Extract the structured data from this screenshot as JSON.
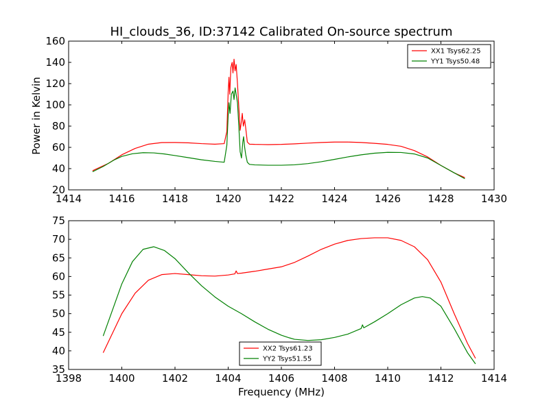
{
  "title": "HI_clouds_36, ID:37142 Calibrated On-source spectrum",
  "colors": {
    "red": "#ff0000",
    "green": "#008000",
    "axes": "#000000",
    "background": "#ffffff"
  },
  "chart_data": [
    {
      "type": "line",
      "panel": "top",
      "title": "HI_clouds_36, ID:37142 Calibrated On-source spectrum",
      "xlabel": "",
      "ylabel": "Power in Kelvin",
      "xlim": [
        1414,
        1430
      ],
      "ylim": [
        20,
        160
      ],
      "xticks": [
        "1414",
        "1416",
        "1418",
        "1420",
        "1422",
        "1424",
        "1426",
        "1428",
        "1430"
      ],
      "yticks": [
        "20",
        "40",
        "60",
        "80",
        "100",
        "120",
        "140",
        "160"
      ],
      "grid": false,
      "legend_position": "top-right",
      "series": [
        {
          "name": "XX1 Tsys62.25",
          "color": "#ff0000",
          "points": [
            [
              1414.9,
              38
            ],
            [
              1415.5,
              45
            ],
            [
              1416.0,
              53
            ],
            [
              1416.5,
              59
            ],
            [
              1417.0,
              63
            ],
            [
              1417.5,
              64.5
            ],
            [
              1418.0,
              64.6
            ],
            [
              1418.5,
              64.3
            ],
            [
              1419.0,
              63.5
            ],
            [
              1419.5,
              63
            ],
            [
              1419.85,
              63.5
            ],
            [
              1419.95,
              75
            ],
            [
              1420.0,
              112
            ],
            [
              1420.03,
              126
            ],
            [
              1420.06,
              110
            ],
            [
              1420.1,
              135
            ],
            [
              1420.15,
              140
            ],
            [
              1420.18,
              130
            ],
            [
              1420.22,
              143
            ],
            [
              1420.26,
              132
            ],
            [
              1420.3,
              138
            ],
            [
              1420.35,
              120
            ],
            [
              1420.4,
              98
            ],
            [
              1420.45,
              76
            ],
            [
              1420.5,
              85
            ],
            [
              1420.53,
              92
            ],
            [
              1420.57,
              80
            ],
            [
              1420.62,
              86
            ],
            [
              1420.66,
              78
            ],
            [
              1420.72,
              65
            ],
            [
              1420.8,
              63
            ],
            [
              1421.0,
              62.8
            ],
            [
              1421.5,
              62.6
            ],
            [
              1422.0,
              62.8
            ],
            [
              1422.5,
              63.3
            ],
            [
              1423.0,
              64
            ],
            [
              1423.5,
              64.6
            ],
            [
              1424.0,
              65
            ],
            [
              1424.5,
              65
            ],
            [
              1425.0,
              64.6
            ],
            [
              1425.5,
              63.8
            ],
            [
              1426.0,
              62.8
            ],
            [
              1426.5,
              61
            ],
            [
              1427.0,
              57
            ],
            [
              1427.5,
              51
            ],
            [
              1428.0,
              43
            ],
            [
              1428.5,
              36
            ],
            [
              1428.9,
              31.5
            ]
          ]
        },
        {
          "name": "YY1 Tsys50.48",
          "color": "#008000",
          "points": [
            [
              1414.9,
              37
            ],
            [
              1415.3,
              42
            ],
            [
              1415.7,
              48
            ],
            [
              1416.0,
              51.5
            ],
            [
              1416.4,
              54
            ],
            [
              1416.8,
              55
            ],
            [
              1417.2,
              54.8
            ],
            [
              1417.6,
              53.8
            ],
            [
              1418.0,
              52.3
            ],
            [
              1418.5,
              50.3
            ],
            [
              1419.0,
              48.3
            ],
            [
              1419.5,
              46.8
            ],
            [
              1419.85,
              46
            ],
            [
              1419.95,
              62
            ],
            [
              1420.0,
              90
            ],
            [
              1420.03,
              102
            ],
            [
              1420.07,
              92
            ],
            [
              1420.12,
              110
            ],
            [
              1420.18,
              113
            ],
            [
              1420.22,
              105
            ],
            [
              1420.26,
              116
            ],
            [
              1420.3,
              110
            ],
            [
              1420.35,
              102
            ],
            [
              1420.4,
              80
            ],
            [
              1420.45,
              56
            ],
            [
              1420.5,
              50
            ],
            [
              1420.55,
              65
            ],
            [
              1420.58,
              70
            ],
            [
              1420.62,
              60
            ],
            [
              1420.66,
              53
            ],
            [
              1420.72,
              46
            ],
            [
              1420.8,
              44
            ],
            [
              1421.0,
              43.5
            ],
            [
              1421.5,
              43.2
            ],
            [
              1422.0,
              43.2
            ],
            [
              1422.5,
              43.6
            ],
            [
              1423.0,
              44.7
            ],
            [
              1423.5,
              46.5
            ],
            [
              1424.0,
              48.7
            ],
            [
              1424.5,
              51
            ],
            [
              1425.0,
              53
            ],
            [
              1425.5,
              54.5
            ],
            [
              1426.0,
              55.3
            ],
            [
              1426.5,
              55.2
            ],
            [
              1427.0,
              53.8
            ],
            [
              1427.5,
              50
            ],
            [
              1428.0,
              43
            ],
            [
              1428.5,
              36
            ],
            [
              1428.9,
              30.5
            ]
          ]
        }
      ]
    },
    {
      "type": "line",
      "panel": "bottom",
      "title": "",
      "xlabel": "Frequency (MHz)",
      "ylabel": "",
      "xlim": [
        1398,
        1414
      ],
      "ylim": [
        35,
        75
      ],
      "xticks": [
        "1398",
        "1400",
        "1402",
        "1404",
        "1406",
        "1408",
        "1410",
        "1412",
        "1414"
      ],
      "yticks": [
        "35",
        "40",
        "45",
        "50",
        "55",
        "60",
        "65",
        "70",
        "75"
      ],
      "grid": false,
      "legend_position": "lower-center",
      "series": [
        {
          "name": "XX2 Tsys61.23",
          "color": "#ff0000",
          "points": [
            [
              1399.3,
              39.5
            ],
            [
              1399.7,
              45.5
            ],
            [
              1400.0,
              50
            ],
            [
              1400.5,
              55.5
            ],
            [
              1401.0,
              59
            ],
            [
              1401.5,
              60.5
            ],
            [
              1402.0,
              60.8
            ],
            [
              1402.5,
              60.5
            ],
            [
              1403.0,
              60.2
            ],
            [
              1403.5,
              60.1
            ],
            [
              1404.0,
              60.4
            ],
            [
              1404.25,
              60.7
            ],
            [
              1404.3,
              61.5
            ],
            [
              1404.35,
              60.8
            ],
            [
              1404.5,
              60.9
            ],
            [
              1405.0,
              61.4
            ],
            [
              1405.5,
              62
            ],
            [
              1406.0,
              62.6
            ],
            [
              1406.5,
              63.8
            ],
            [
              1407.0,
              65.5
            ],
            [
              1407.5,
              67.3
            ],
            [
              1408.0,
              68.7
            ],
            [
              1408.5,
              69.7
            ],
            [
              1409.0,
              70.2
            ],
            [
              1409.5,
              70.4
            ],
            [
              1410.0,
              70.4
            ],
            [
              1410.5,
              69.7
            ],
            [
              1411.0,
              68
            ],
            [
              1411.5,
              64.5
            ],
            [
              1412.0,
              58.5
            ],
            [
              1412.5,
              50
            ],
            [
              1413.0,
              42
            ],
            [
              1413.3,
              38
            ]
          ]
        },
        {
          "name": "YY2 Tsys51.55",
          "color": "#008000",
          "points": [
            [
              1399.3,
              44
            ],
            [
              1399.7,
              52
            ],
            [
              1400.0,
              58
            ],
            [
              1400.4,
              64
            ],
            [
              1400.8,
              67.3
            ],
            [
              1401.2,
              68
            ],
            [
              1401.6,
              67
            ],
            [
              1402.0,
              64.8
            ],
            [
              1402.5,
              61
            ],
            [
              1403.0,
              57.5
            ],
            [
              1403.5,
              54.5
            ],
            [
              1404.0,
              52
            ],
            [
              1404.5,
              50
            ],
            [
              1405.0,
              47.8
            ],
            [
              1405.5,
              45.8
            ],
            [
              1406.0,
              44.2
            ],
            [
              1406.3,
              43.5
            ],
            [
              1406.5,
              43.1
            ],
            [
              1407.0,
              42.8
            ],
            [
              1407.5,
              43
            ],
            [
              1408.0,
              43.6
            ],
            [
              1408.5,
              44.5
            ],
            [
              1409.0,
              46
            ],
            [
              1409.05,
              47
            ],
            [
              1409.1,
              46.2
            ],
            [
              1409.5,
              47.8
            ],
            [
              1410.0,
              50
            ],
            [
              1410.5,
              52.4
            ],
            [
              1411.0,
              54.2
            ],
            [
              1411.3,
              54.6
            ],
            [
              1411.6,
              54.2
            ],
            [
              1412.0,
              52
            ],
            [
              1412.5,
              46
            ],
            [
              1413.0,
              39.5
            ],
            [
              1413.3,
              36.5
            ]
          ]
        }
      ]
    }
  ]
}
